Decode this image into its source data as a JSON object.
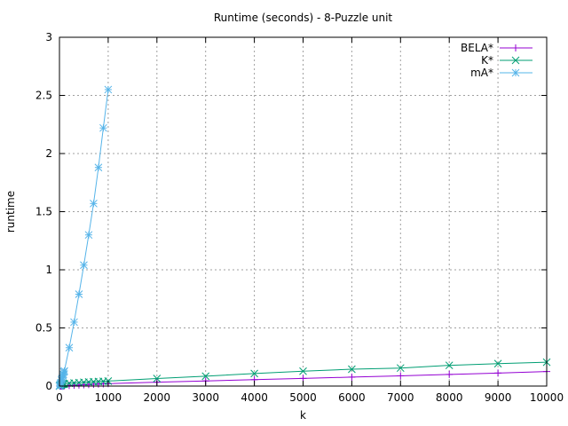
{
  "chart_data": {
    "type": "line",
    "title": "Runtime (seconds) - 8-Puzzle unit",
    "xlabel": "k",
    "ylabel": "runtime",
    "xlim": [
      0,
      10000
    ],
    "ylim": [
      0,
      3
    ],
    "x_ticks": [
      0,
      1000,
      2000,
      3000,
      4000,
      5000,
      6000,
      7000,
      8000,
      9000,
      10000
    ],
    "x_tick_labels": [
      "0",
      "1000",
      "2000",
      "3000",
      "4000",
      "5000",
      "6000",
      "7000",
      "8000",
      "9000",
      "10000"
    ],
    "y_ticks": [
      0,
      0.5,
      1,
      1.5,
      2,
      2.5,
      3
    ],
    "y_tick_labels": [
      "0",
      "0.5",
      "1",
      "1.5",
      "2",
      "2.5",
      "3"
    ],
    "grid": true,
    "legend_position": "top-right",
    "series": [
      {
        "name": "BELA*",
        "color": "#9400d3",
        "marker": "plus",
        "x": [
          1,
          10,
          20,
          30,
          40,
          50,
          60,
          70,
          80,
          90,
          100,
          200,
          300,
          400,
          500,
          600,
          700,
          800,
          900,
          1000,
          2000,
          3000,
          4000,
          5000,
          6000,
          7000,
          8000,
          9000,
          10000
        ],
        "y": [
          0.0,
          0.0,
          0.001,
          0.001,
          0.001,
          0.002,
          0.002,
          0.002,
          0.003,
          0.003,
          0.003,
          0.005,
          0.007,
          0.009,
          0.011,
          0.013,
          0.015,
          0.017,
          0.019,
          0.021,
          0.033,
          0.044,
          0.055,
          0.066,
          0.077,
          0.088,
          0.1,
          0.112,
          0.125
        ]
      },
      {
        "name": "K*",
        "color": "#009e73",
        "marker": "cross",
        "x": [
          1,
          10,
          20,
          30,
          40,
          50,
          60,
          70,
          80,
          90,
          100,
          200,
          300,
          400,
          500,
          600,
          700,
          800,
          900,
          1000,
          2000,
          3000,
          4000,
          5000,
          6000,
          7000,
          8000,
          9000,
          10000
        ],
        "y": [
          0.0,
          0.005,
          0.008,
          0.01,
          0.012,
          0.014,
          0.015,
          0.016,
          0.017,
          0.018,
          0.019,
          0.024,
          0.027,
          0.03,
          0.033,
          0.035,
          0.037,
          0.039,
          0.041,
          0.043,
          0.065,
          0.085,
          0.108,
          0.128,
          0.145,
          0.155,
          0.178,
          0.193,
          0.205
        ]
      },
      {
        "name": "mA*",
        "color": "#56b4e9",
        "marker": "star",
        "x": [
          1,
          10,
          20,
          30,
          40,
          50,
          60,
          70,
          80,
          90,
          100,
          200,
          300,
          400,
          500,
          600,
          700,
          800,
          900,
          1000
        ],
        "y": [
          0.0,
          0.01,
          0.02,
          0.03,
          0.05,
          0.06,
          0.07,
          0.09,
          0.1,
          0.12,
          0.13,
          0.33,
          0.55,
          0.79,
          1.04,
          1.3,
          1.57,
          1.88,
          2.22,
          2.55
        ]
      }
    ]
  }
}
